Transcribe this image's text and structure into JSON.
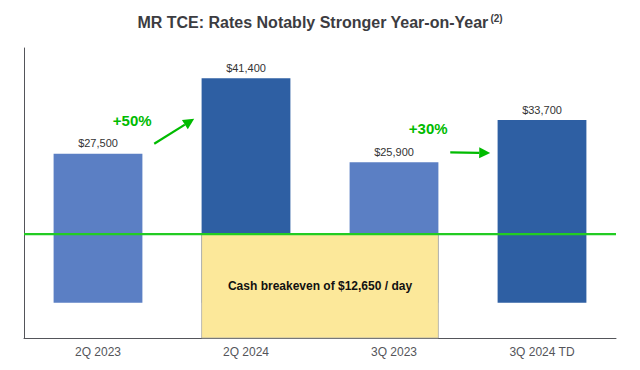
{
  "chart_data": {
    "type": "bar",
    "title": "MR TCE: Rates Notably Stronger Year-on-Year",
    "title_note": "(2)",
    "categories": [
      "2Q 2023",
      "2Q 2024",
      "3Q 2023",
      "3Q 2024 TD"
    ],
    "values": [
      27500,
      41400,
      25900,
      33700
    ],
    "value_labels": [
      "$27,500",
      "$41,400",
      "$25,900",
      "$33,700"
    ],
    "data_labels": true,
    "colors": [
      "#5b7fc4",
      "#2e5fa3",
      "#5b7fc4",
      "#2e5fa3"
    ],
    "ylim": [
      -6500,
      47000
    ],
    "yticks": [],
    "tick_labels": "x",
    "grid": false,
    "annotations": [
      {
        "text": "Cash breakeven of $12,650 / day",
        "value": 12650,
        "color": "#22cc22",
        "fill": "#fce89a",
        "from": "2Q 2024",
        "to": "3Q 2023"
      },
      {
        "text": "+50%",
        "from": "2Q 2023",
        "to": "2Q 2024",
        "color": "#00bb00"
      },
      {
        "text": "+30%",
        "from": "3Q 2023",
        "to": "3Q 2024 TD",
        "color": "#00bb00"
      }
    ]
  }
}
